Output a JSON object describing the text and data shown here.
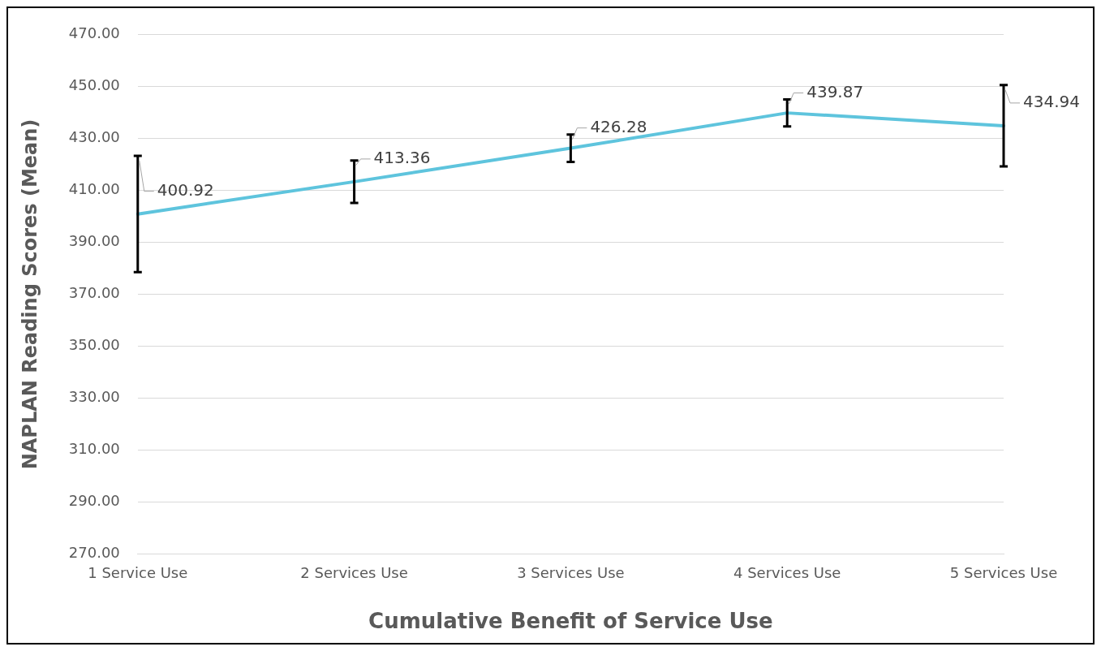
{
  "chart_data": {
    "type": "line",
    "xlabel": "Cumulative Benefit of Service Use",
    "ylabel": "NAPLAN Reading Scores (Mean)",
    "categories": [
      "1 Service Use",
      "2 Services Use",
      "3 Services Use",
      "4 Services Use",
      "5 Services Use"
    ],
    "series": [
      {
        "color": "#5ec4dd",
        "values": [
          400.92,
          413.36,
          426.28,
          439.87,
          434.94
        ],
        "errors": [
          22.4,
          8.2,
          5.3,
          5.2,
          15.7
        ]
      }
    ],
    "data_labels": true,
    "ylim": [
      270,
      470
    ],
    "yticks": [
      {
        "value": 270,
        "label": "270.00"
      },
      {
        "value": 290,
        "label": "290.00"
      },
      {
        "value": 310,
        "label": "310.00"
      },
      {
        "value": 330,
        "label": "330.00"
      },
      {
        "value": 350,
        "label": "350.00"
      },
      {
        "value": 370,
        "label": "370.00"
      },
      {
        "value": 390,
        "label": "390.00"
      },
      {
        "value": 410,
        "label": "410.00"
      },
      {
        "value": 430,
        "label": "430.00"
      },
      {
        "value": 450,
        "label": "450.00"
      },
      {
        "value": 470,
        "label": "470.00"
      }
    ],
    "grid": "y",
    "legend": false,
    "marker": "none",
    "line_style": "solid"
  }
}
